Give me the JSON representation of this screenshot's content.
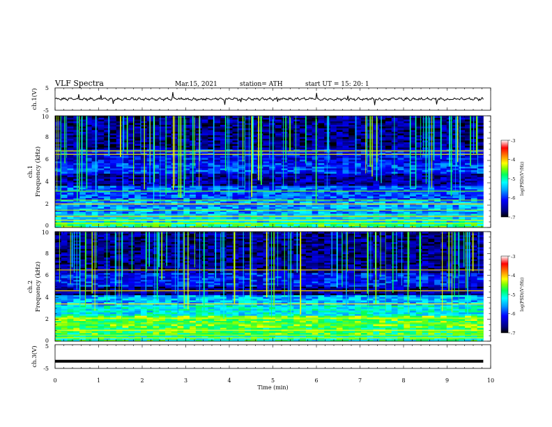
{
  "header": {
    "title": "VLF  Spectra",
    "date": "Mar.15,  2021",
    "station": "station= ATH",
    "start": "start  UT  =    15: 20: 1"
  },
  "chart_data": [
    {
      "type": "line",
      "panel": "ch1-waveform",
      "ylabel": "ch.1(V)",
      "ylim": [
        -5,
        5
      ],
      "yticks": [
        "5",
        "-5"
      ],
      "x_range_min": [
        0,
        9.83
      ],
      "description_level": "noisy waveform centred near 0 V with small spikes",
      "baseline_v": 0.0
    },
    {
      "type": "heatmap",
      "panel": "ch1-spectrogram",
      "ylabel": "ch.1\nFrequency  (kHz)",
      "ylabel_line1": "ch.1",
      "ylabel_line2": "Frequency  (kHz)",
      "ylim": [
        0,
        10
      ],
      "yticks": [
        "0",
        "2",
        "4",
        "6",
        "8",
        "10"
      ],
      "x_range_min": [
        0,
        9.83
      ],
      "colorbar": {
        "label": "log(PSD)(V²/Hz)",
        "ticks": [
          "-3",
          "-4",
          "-5",
          "-6",
          "-7"
        ],
        "range": [
          -7,
          -3
        ]
      },
      "bands_khz": [
        {
          "f0": 0.0,
          "f1": 0.5,
          "level": -4.8
        },
        {
          "f0": 0.5,
          "f1": 1.2,
          "level": -5.3
        },
        {
          "f0": 1.2,
          "f1": 2.5,
          "level": -5.6
        },
        {
          "f0": 2.5,
          "f1": 3.7,
          "level": -5.9
        },
        {
          "f0": 3.7,
          "f1": 4.8,
          "level": -6.5
        },
        {
          "f0": 4.8,
          "f1": 5.8,
          "level": -6.0
        },
        {
          "f0": 5.8,
          "f1": 7.0,
          "level": -6.2
        },
        {
          "f0": 7.0,
          "f1": 10.0,
          "level": -6.6
        }
      ],
      "lines_khz": [
        0.35,
        0.65,
        1.0,
        1.55,
        2.1,
        2.45,
        3.25,
        6.55,
        6.85
      ]
    },
    {
      "type": "heatmap",
      "panel": "ch2-spectrogram",
      "ylabel_line1": "ch.2",
      "ylabel_line2": "Frequency  (kHz)",
      "ylim": [
        0,
        10
      ],
      "yticks": [
        "0",
        "2",
        "4",
        "6",
        "8",
        "10"
      ],
      "x_range_min": [
        0,
        9.83
      ],
      "colorbar": {
        "label": "log(PSD)(V²/Hz)",
        "ticks": [
          "-3",
          "-4",
          "-5",
          "-6",
          "-7"
        ],
        "range": [
          -7,
          -3
        ]
      },
      "bands_khz": [
        {
          "f0": 0.0,
          "f1": 0.6,
          "level": -5.0
        },
        {
          "f0": 0.6,
          "f1": 1.3,
          "level": -4.7
        },
        {
          "f0": 1.3,
          "f1": 2.4,
          "level": -4.6
        },
        {
          "f0": 2.4,
          "f1": 3.3,
          "level": -5.2
        },
        {
          "f0": 3.3,
          "f1": 4.2,
          "level": -5.5
        },
        {
          "f0": 4.2,
          "f1": 5.0,
          "level": -6.6
        },
        {
          "f0": 5.0,
          "f1": 6.3,
          "level": -6.1
        },
        {
          "f0": 6.3,
          "f1": 10.0,
          "level": -6.6
        }
      ],
      "lines_khz": [
        0.3,
        0.55,
        1.0,
        1.6,
        2.1,
        3.4,
        4.6,
        6.5
      ]
    },
    {
      "type": "line",
      "panel": "ch3-waveform",
      "ylabel": "ch.3(V)",
      "ylim": [
        -5,
        5
      ],
      "yticks": [
        "5",
        "-5"
      ],
      "x_range_min": [
        0,
        9.83
      ],
      "baseline_v": -2.0,
      "xlabel": "Time  (min)",
      "xlim": [
        0,
        10
      ],
      "xticks": [
        "0",
        "1",
        "2",
        "3",
        "4",
        "5",
        "6",
        "7",
        "8",
        "9",
        "10"
      ]
    }
  ],
  "colors": {
    "colormap": [
      "#000000",
      "#00007f",
      "#0000ff",
      "#00a0ff",
      "#00ffff",
      "#00ff60",
      "#80ff00",
      "#ffff00",
      "#ff8000",
      "#ff0000",
      "#ffffff"
    ]
  }
}
